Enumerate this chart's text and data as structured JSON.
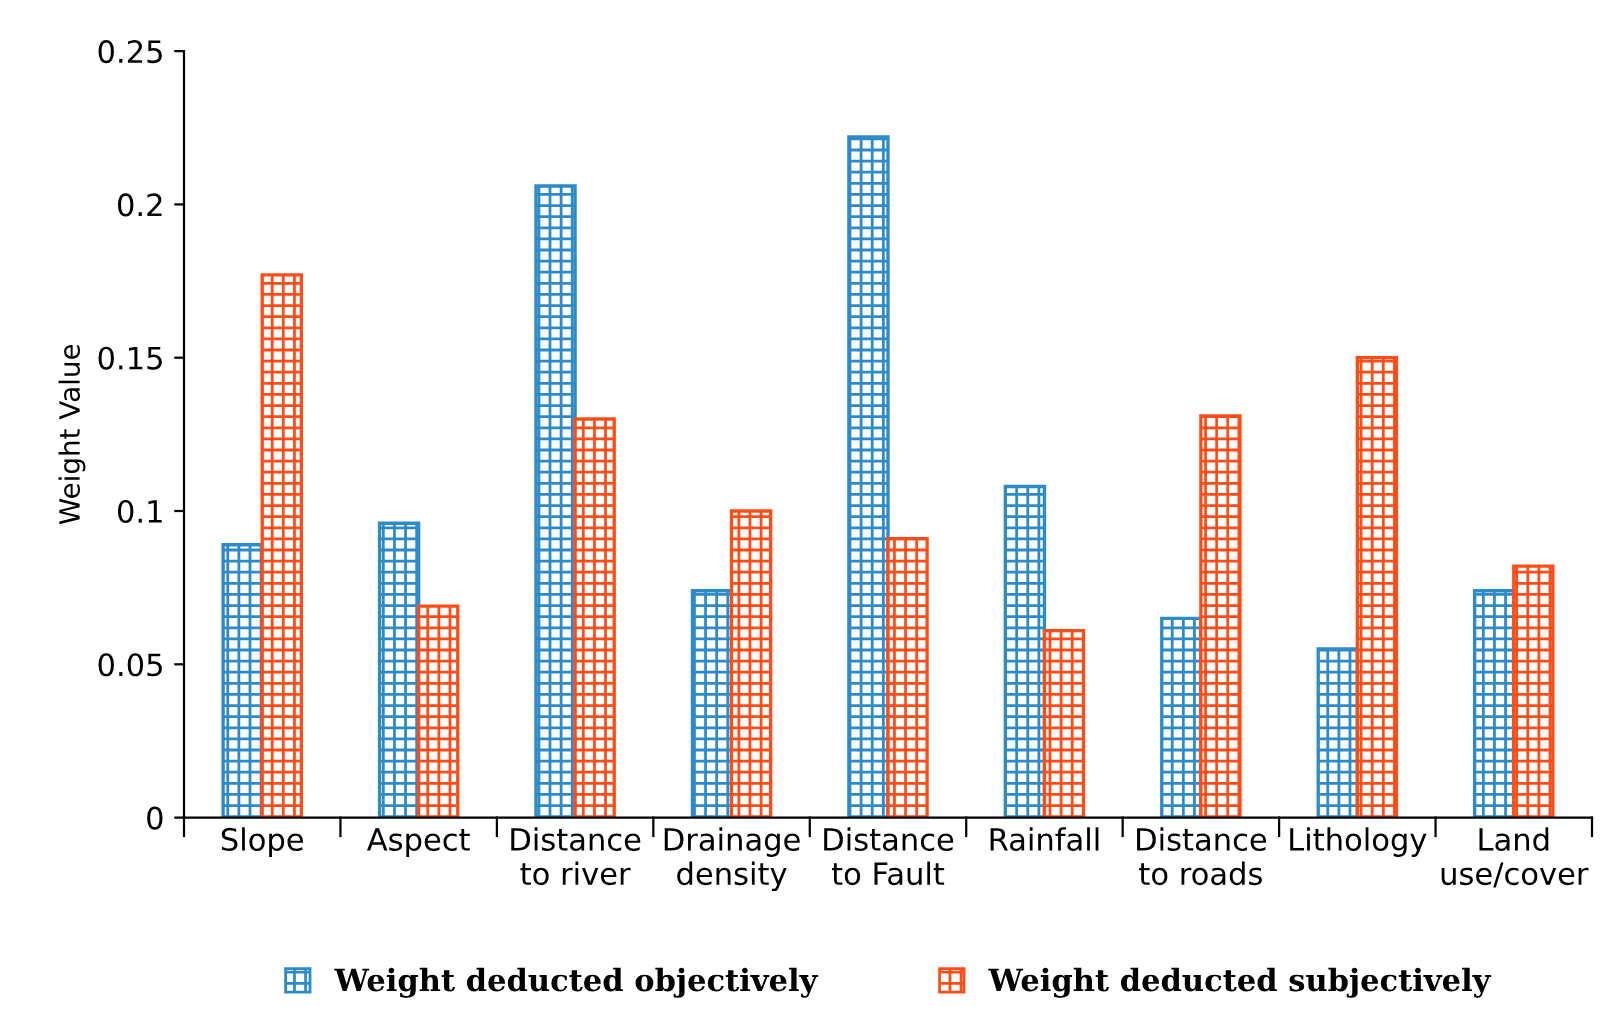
{
  "chart_data": {
    "type": "bar",
    "ylabel": "Weight Value",
    "categories": [
      "Slope",
      "Aspect",
      "Distance\nto river",
      "Drainage\ndensity",
      "Distance\nto Fault",
      "Rainfall",
      "Distance\nto roads",
      "Lithology",
      "Land\nuse/cover"
    ],
    "series": [
      {
        "name": "Weight deducted objectively",
        "color": "#2e8bc9",
        "values": [
          0.089,
          0.096,
          0.206,
          0.074,
          0.222,
          0.108,
          0.065,
          0.055,
          0.074
        ]
      },
      {
        "name": "Weight deducted subjectively",
        "color": "#ff4d1a",
        "values": [
          0.177,
          0.069,
          0.13,
          0.1,
          0.091,
          0.061,
          0.131,
          0.15,
          0.082
        ]
      }
    ],
    "ylim": [
      0,
      0.25
    ],
    "yticks": [
      0,
      0.05,
      0.1,
      0.15,
      0.2,
      0.25
    ],
    "grid": false,
    "legend": "bottom"
  }
}
